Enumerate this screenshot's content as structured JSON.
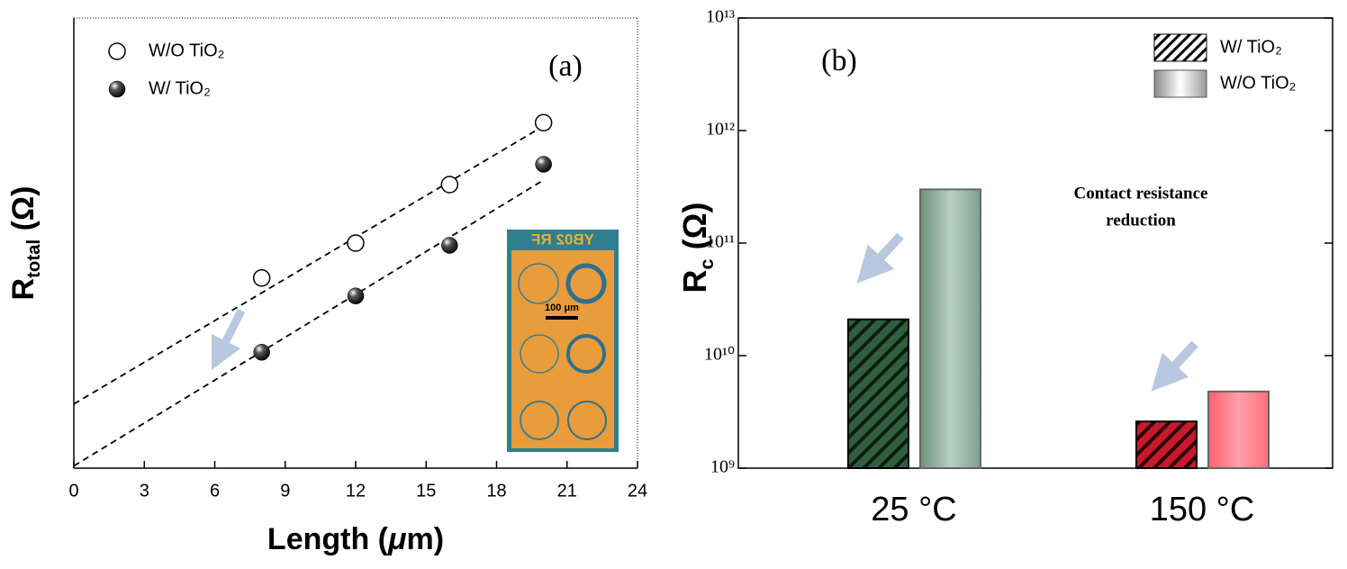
{
  "chart_data": [
    {
      "type": "scatter",
      "annotation": "(a)",
      "xlabel": [
        "Length (",
        "μ",
        "m)"
      ],
      "ylabel": [
        "R",
        "total",
        " (Ω)"
      ],
      "xlim": [
        0,
        24
      ],
      "xticks": [
        0,
        3,
        6,
        9,
        12,
        15,
        18,
        21,
        24
      ],
      "ylim": [
        0,
        4
      ],
      "inset_labels": [
        "YB02 RF",
        "100 μm"
      ],
      "series": [
        {
          "name": "W/O TiO₂",
          "marker": "open",
          "color": "#000000",
          "x": [
            8,
            12,
            16,
            20
          ],
          "values": [
            1.69,
            2.0,
            2.52,
            3.07
          ],
          "fit": {
            "x": [
              0,
              20
            ],
            "values": [
              0.57,
              3.04
            ]
          }
        },
        {
          "name": "W/ TiO₂",
          "marker": "filled",
          "color": "#000000",
          "x": [
            8,
            12,
            16,
            20
          ],
          "values": [
            1.03,
            1.53,
            1.98,
            2.7
          ],
          "fit": {
            "x": [
              0,
              20
            ],
            "values": [
              0.02,
              2.56
            ]
          }
        }
      ]
    },
    {
      "type": "bar",
      "annotation": "(b)",
      "note": [
        "Contact resistance",
        "reduction"
      ],
      "ylabel": [
        "R",
        "c",
        " (Ω)"
      ],
      "log_scale": true,
      "ylim": [
        1000000000,
        10000000000000
      ],
      "yticks": [
        {
          "value": 1000000000,
          "label": "10⁹"
        },
        {
          "value": 10000000000,
          "label": "10¹⁰"
        },
        {
          "value": 100000000000,
          "label": "10¹¹"
        },
        {
          "value": 1000000000000,
          "label": "10¹²"
        },
        {
          "value": 10000000000000,
          "label": "10¹³"
        }
      ],
      "categories": [
        "25 °C",
        "150 °C"
      ],
      "series": [
        {
          "name": "W/ TiO₂",
          "pattern": "hatch",
          "colors": [
            "#2f5f3f",
            "#c81a2c"
          ],
          "values": [
            21000000000,
            2600000000
          ]
        },
        {
          "name": "W/O TiO₂",
          "pattern": "gradient",
          "colors": [
            "#9fbfae",
            "#ff8a92"
          ],
          "values": [
            300000000000,
            4800000000
          ]
        }
      ]
    }
  ]
}
